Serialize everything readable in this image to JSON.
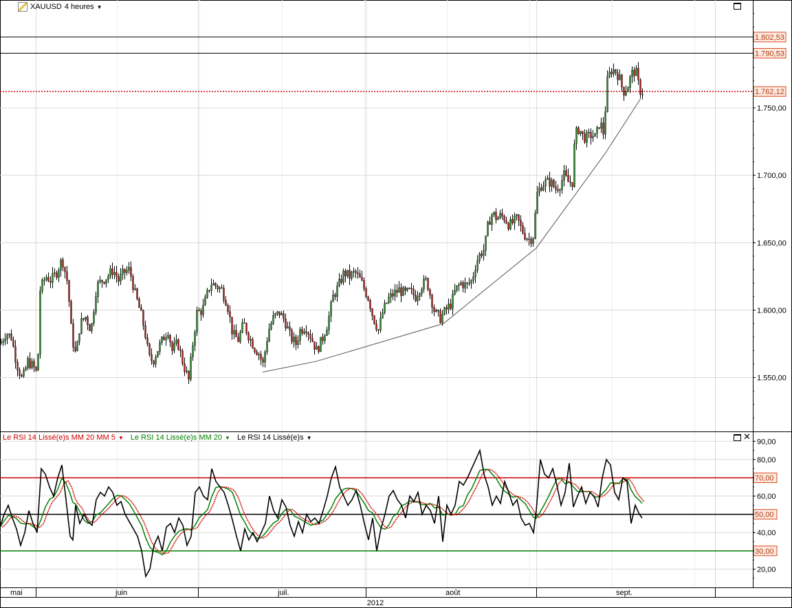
{
  "instrument": {
    "symbol": "XAUUSD",
    "timeframe": "4 heures"
  },
  "price_panel": {
    "tick_labels": [
      "1.550,00",
      "1.600,00",
      "1.650,00",
      "1.700,00",
      "1.750,00"
    ],
    "markers": [
      {
        "label": "1.802,53",
        "value": 1802.53,
        "style": "black-line"
      },
      {
        "label": "1.790,53",
        "value": 1790.53,
        "style": "black-line"
      },
      {
        "label": "1.762,12",
        "value": 1762.12,
        "style": "red-dotted"
      }
    ]
  },
  "indicator_panel": {
    "legend": [
      {
        "label": "Le RSI 14 Lissé(e)s MM 20 MM 5",
        "color": "#cc0000"
      },
      {
        "label": "Le RSI 14 Lissé(e)s MM 20",
        "color": "#008000"
      },
      {
        "label": "Le RSI 14 Lissé(e)s",
        "color": "#000000"
      }
    ],
    "tick_labels": [
      "20,00",
      "40,00",
      "60,00",
      "80,00",
      "90,00"
    ],
    "levels": [
      {
        "label": "70,00",
        "value": 70,
        "color": "#cc0000"
      },
      {
        "label": "50,00",
        "value": 50,
        "color": "#000000"
      },
      {
        "label": "30,00",
        "value": 30,
        "color": "#008000"
      }
    ]
  },
  "time_axis": {
    "months": [
      "mai",
      "juin",
      "juil.",
      "août",
      "sept."
    ],
    "year": "2012"
  },
  "colors": {
    "up": "#2e8b2e",
    "down": "#b22222",
    "grid": "#d9d9d9",
    "trendline": "#555555"
  },
  "chart_data": [
    {
      "type": "candlestick",
      "title": "XAUUSD 4 heures",
      "ylim": [
        1510,
        1830
      ],
      "x_range": [
        0,
        1095
      ],
      "trendline": [
        [
          382,
          1554
        ],
        [
          460,
          1562
        ],
        [
          645,
          1590
        ],
        [
          780,
          1646
        ],
        [
          880,
          1716
        ],
        [
          932,
          1757
        ]
      ],
      "closes": [
        [
          0,
          1575
        ],
        [
          8,
          1583
        ],
        [
          16,
          1580
        ],
        [
          24,
          1560
        ],
        [
          32,
          1548
        ],
        [
          40,
          1562
        ],
        [
          48,
          1558
        ],
        [
          54,
          1552
        ],
        [
          58,
          1615
        ],
        [
          66,
          1625
        ],
        [
          74,
          1622
        ],
        [
          82,
          1628
        ],
        [
          90,
          1638
        ],
        [
          98,
          1620
        ],
        [
          104,
          1580
        ],
        [
          110,
          1566
        ],
        [
          116,
          1590
        ],
        [
          124,
          1595
        ],
        [
          132,
          1585
        ],
        [
          140,
          1618
        ],
        [
          148,
          1622
        ],
        [
          156,
          1625
        ],
        [
          164,
          1630
        ],
        [
          172,
          1622
        ],
        [
          180,
          1628
        ],
        [
          188,
          1630
        ],
        [
          196,
          1612
        ],
        [
          204,
          1598
        ],
        [
          210,
          1585
        ],
        [
          216,
          1565
        ],
        [
          222,
          1562
        ],
        [
          230,
          1572
        ],
        [
          238,
          1580
        ],
        [
          244,
          1585
        ],
        [
          250,
          1570
        ],
        [
          258,
          1576
        ],
        [
          266,
          1560
        ],
        [
          274,
          1548
        ],
        [
          280,
          1575
        ],
        [
          286,
          1598
        ],
        [
          294,
          1600
        ],
        [
          300,
          1610
        ],
        [
          306,
          1620
        ],
        [
          314,
          1618
        ],
        [
          322,
          1615
        ],
        [
          330,
          1605
        ],
        [
          338,
          1582
        ],
        [
          346,
          1578
        ],
        [
          354,
          1590
        ],
        [
          362,
          1580
        ],
        [
          370,
          1572
        ],
        [
          376,
          1568
        ],
        [
          382,
          1560
        ],
        [
          390,
          1585
        ],
        [
          398,
          1595
        ],
        [
          406,
          1598
        ],
        [
          414,
          1592
        ],
        [
          422,
          1580
        ],
        [
          430,
          1575
        ],
        [
          436,
          1585
        ],
        [
          444,
          1588
        ],
        [
          452,
          1580
        ],
        [
          460,
          1570
        ],
        [
          468,
          1578
        ],
        [
          476,
          1590
        ],
        [
          484,
          1610
        ],
        [
          492,
          1618
        ],
        [
          500,
          1628
        ],
        [
          508,
          1625
        ],
        [
          516,
          1628
        ],
        [
          524,
          1622
        ],
        [
          530,
          1615
        ],
        [
          536,
          1608
        ],
        [
          542,
          1595
        ],
        [
          550,
          1585
        ],
        [
          556,
          1598
        ],
        [
          564,
          1608
        ],
        [
          572,
          1612
        ],
        [
          580,
          1615
        ],
        [
          588,
          1612
        ],
        [
          596,
          1614
        ],
        [
          604,
          1610
        ],
        [
          612,
          1618
        ],
        [
          620,
          1622
        ],
        [
          626,
          1610
        ],
        [
          632,
          1598
        ],
        [
          640,
          1594
        ],
        [
          648,
          1600
        ],
        [
          656,
          1605
        ],
        [
          662,
          1615
        ],
        [
          670,
          1620
        ],
        [
          678,
          1618
        ],
        [
          686,
          1622
        ],
        [
          692,
          1635
        ],
        [
          698,
          1642
        ],
        [
          704,
          1645
        ],
        [
          710,
          1665
        ],
        [
          716,
          1672
        ],
        [
          722,
          1668
        ],
        [
          728,
          1670
        ],
        [
          734,
          1668
        ],
        [
          740,
          1663
        ],
        [
          746,
          1665
        ],
        [
          752,
          1668
        ],
        [
          758,
          1660
        ],
        [
          764,
          1655
        ],
        [
          770,
          1652
        ],
        [
          776,
          1656
        ],
        [
          780,
          1685
        ],
        [
          786,
          1692
        ],
        [
          792,
          1695
        ],
        [
          800,
          1695
        ],
        [
          808,
          1690
        ],
        [
          814,
          1693
        ],
        [
          820,
          1700
        ],
        [
          826,
          1695
        ],
        [
          832,
          1695
        ],
        [
          836,
          1730
        ],
        [
          842,
          1735
        ],
        [
          848,
          1728
        ],
        [
          854,
          1728
        ],
        [
          860,
          1730
        ],
        [
          866,
          1728
        ],
        [
          872,
          1740
        ],
        [
          878,
          1730
        ],
        [
          882,
          1768
        ],
        [
          888,
          1778
        ],
        [
          894,
          1778
        ],
        [
          900,
          1773
        ],
        [
          906,
          1762
        ],
        [
          912,
          1765
        ],
        [
          918,
          1775
        ],
        [
          924,
          1778
        ],
        [
          930,
          1763
        ],
        [
          934,
          1762
        ]
      ]
    },
    {
      "type": "line",
      "title": "Le RSI 14 Lissé(e)s",
      "ylim": [
        10,
        95
      ],
      "levels": [
        30,
        50,
        70
      ],
      "series": [
        {
          "name": "Le RSI 14 Lissé(e)s",
          "color": "#000000",
          "x": [
            0,
            6,
            12,
            18,
            24,
            30,
            36,
            42,
            48,
            54,
            60,
            66,
            72,
            78,
            84,
            90,
            96,
            102,
            106,
            110,
            116,
            122,
            128,
            134,
            140,
            146,
            152,
            158,
            164,
            170,
            176,
            182,
            188,
            194,
            200,
            206,
            212,
            218,
            224,
            230,
            236,
            242,
            248,
            254,
            260,
            266,
            272,
            278,
            284,
            290,
            296,
            302,
            308,
            314,
            320,
            326,
            332,
            338,
            344,
            350,
            356,
            362,
            368,
            374,
            380,
            386,
            392,
            398,
            404,
            410,
            416,
            422,
            428,
            434,
            440,
            446,
            452,
            458,
            464,
            470,
            476,
            482,
            488,
            494,
            500,
            506,
            512,
            518,
            524,
            530,
            536,
            542,
            548,
            554,
            560,
            566,
            572,
            578,
            584,
            590,
            596,
            602,
            608,
            614,
            620,
            626,
            632,
            638,
            644,
            650,
            656,
            662,
            668,
            674,
            680,
            686,
            692,
            698,
            704,
            710,
            716,
            722,
            728,
            734,
            740,
            746,
            752,
            758,
            764,
            770,
            776,
            780,
            786,
            792,
            798,
            804,
            810,
            816,
            822,
            828,
            834,
            840,
            846,
            852,
            858,
            864,
            870,
            876,
            882,
            888,
            894,
            900,
            906,
            912,
            918,
            924,
            930,
            934
          ],
          "values": [
            43,
            50,
            55,
            48,
            42,
            33,
            40,
            52,
            45,
            40,
            75,
            72,
            65,
            60,
            70,
            77,
            58,
            38,
            36,
            55,
            45,
            50,
            46,
            44,
            58,
            62,
            60,
            65,
            62,
            55,
            57,
            50,
            46,
            42,
            38,
            30,
            16,
            20,
            33,
            38,
            30,
            43,
            45,
            40,
            48,
            44,
            33,
            38,
            62,
            65,
            60,
            58,
            75,
            68,
            65,
            62,
            55,
            47,
            38,
            30,
            42,
            36,
            40,
            35,
            40,
            45,
            60,
            52,
            48,
            58,
            54,
            44,
            38,
            46,
            40,
            50,
            46,
            48,
            45,
            52,
            60,
            70,
            76,
            65,
            60,
            55,
            58,
            63,
            55,
            45,
            36,
            48,
            30,
            42,
            50,
            60,
            63,
            58,
            55,
            48,
            60,
            57,
            62,
            50,
            55,
            52,
            45,
            60,
            35,
            55,
            50,
            55,
            68,
            66,
            70,
            75,
            80,
            85,
            72,
            65,
            55,
            60,
            56,
            68,
            62,
            55,
            58,
            48,
            44,
            45,
            40,
            52,
            80,
            72,
            70,
            75,
            66,
            55,
            62,
            78,
            54,
            60,
            65,
            56,
            62,
            60,
            54,
            70,
            80,
            77,
            62,
            58,
            70,
            68,
            45,
            55,
            50,
            48
          ],
          "note_vals": []
        }
      ]
    }
  ]
}
